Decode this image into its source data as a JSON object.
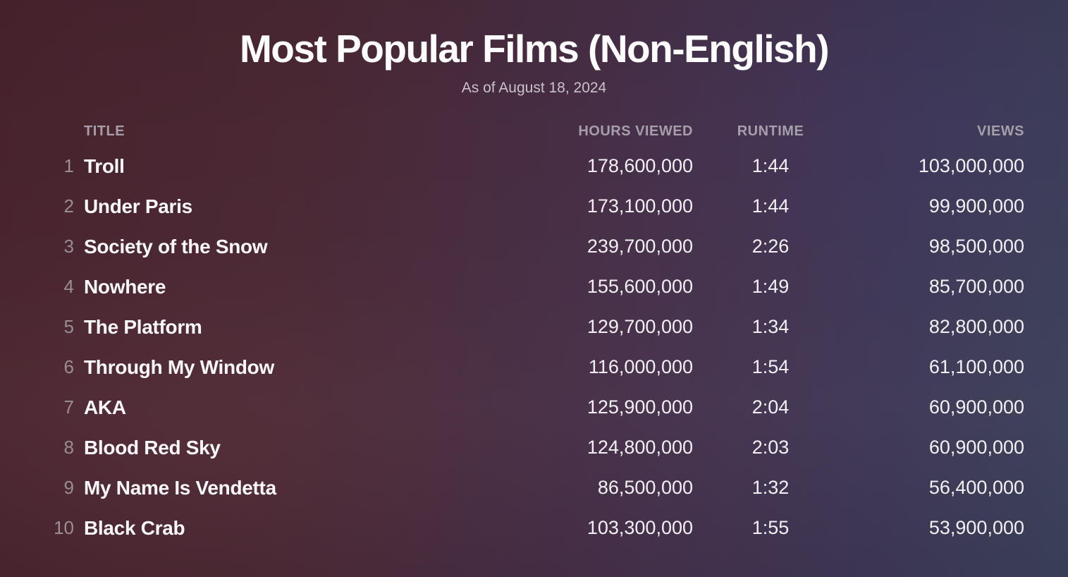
{
  "page": {
    "title": "Most Popular Films (Non-English)",
    "subtitle": "As of August 18, 2024"
  },
  "table": {
    "columns": {
      "title": "TITLE",
      "hours": "HOURS VIEWED",
      "runtime": "RUNTIME",
      "views": "VIEWS"
    },
    "rows": [
      {
        "rank": "1",
        "title": "Troll",
        "hours": "178,600,000",
        "runtime": "1:44",
        "views": "103,000,000"
      },
      {
        "rank": "2",
        "title": "Under Paris",
        "hours": "173,100,000",
        "runtime": "1:44",
        "views": "99,900,000"
      },
      {
        "rank": "3",
        "title": "Society of the Snow",
        "hours": "239,700,000",
        "runtime": "2:26",
        "views": "98,500,000"
      },
      {
        "rank": "4",
        "title": "Nowhere",
        "hours": "155,600,000",
        "runtime": "1:49",
        "views": "85,700,000"
      },
      {
        "rank": "5",
        "title": "The Platform",
        "hours": "129,700,000",
        "runtime": "1:34",
        "views": "82,800,000"
      },
      {
        "rank": "6",
        "title": "Through My Window",
        "hours": "116,000,000",
        "runtime": "1:54",
        "views": "61,100,000"
      },
      {
        "rank": "7",
        "title": "AKA",
        "hours": "125,900,000",
        "runtime": "2:04",
        "views": "60,900,000"
      },
      {
        "rank": "8",
        "title": "Blood Red Sky",
        "hours": "124,800,000",
        "runtime": "2:03",
        "views": "60,900,000"
      },
      {
        "rank": "9",
        "title": "My Name Is Vendetta",
        "hours": "86,500,000",
        "runtime": "1:32",
        "views": "56,400,000"
      },
      {
        "rank": "10",
        "title": "Black Crab",
        "hours": "103,300,000",
        "runtime": "1:55",
        "views": "53,900,000"
      }
    ]
  },
  "colors": {
    "background_top_left": "#48232d",
    "background_bottom_right": "#3b4059",
    "title_text": "#fdfcfd",
    "subtitle_text": "#c8c2ca",
    "header_text": "#a69ea9",
    "rank_text": "#9a8e95",
    "value_text": "#f3f0f3"
  },
  "chart_data": {
    "type": "table",
    "title": "Most Popular Films (Non-English)",
    "subtitle": "As of August 18, 2024",
    "columns": [
      "Rank",
      "Title",
      "Hours Viewed",
      "Runtime",
      "Views"
    ],
    "rows": [
      [
        1,
        "Troll",
        178600000,
        "1:44",
        103000000
      ],
      [
        2,
        "Under Paris",
        173100000,
        "1:44",
        99900000
      ],
      [
        3,
        "Society of the Snow",
        239700000,
        "2:26",
        98500000
      ],
      [
        4,
        "Nowhere",
        155600000,
        "1:49",
        85700000
      ],
      [
        5,
        "The Platform",
        129700000,
        "1:34",
        82800000
      ],
      [
        6,
        "Through My Window",
        116000000,
        "1:54",
        61100000
      ],
      [
        7,
        "AKA",
        125900000,
        "2:04",
        60900000
      ],
      [
        8,
        "Blood Red Sky",
        124800000,
        "2:03",
        60900000
      ],
      [
        9,
        "My Name Is Vendetta",
        86500000,
        "1:32",
        56400000
      ],
      [
        10,
        "Black Crab",
        103300000,
        "1:55",
        53900000
      ]
    ]
  }
}
